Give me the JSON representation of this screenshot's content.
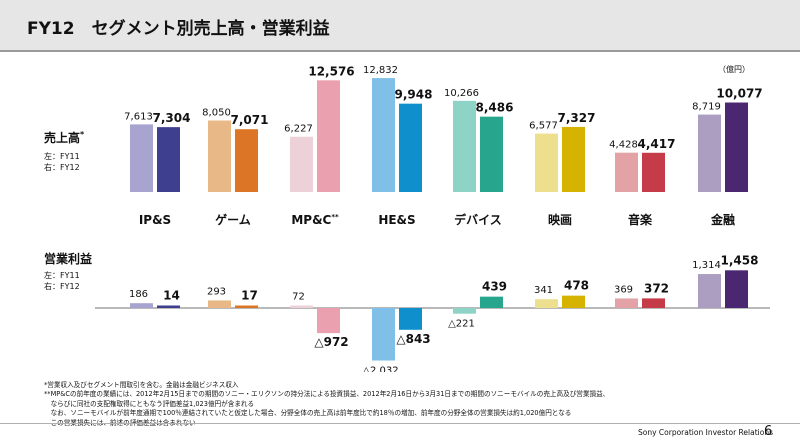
{
  "title": "FY12　セグメント別売上高・営業利益",
  "unit": "（億円）",
  "colors": {
    "fy11": [
      "#a7a4cf",
      "#e9b887",
      "#ecd2d8",
      "#80c0e8",
      "#8dd3c6",
      "#ecdf8e",
      "#e2a2a6",
      "#ab9ec1"
    ],
    "fy12": [
      "#3e3f8e",
      "#dd7526",
      "#eaa0ae",
      "#0f8fcc",
      "#27a68d",
      "#d6b300",
      "#c53c48",
      "#4b2671"
    ]
  },
  "panels": {
    "sales": {
      "label": "売上高",
      "marker": "*",
      "left": "左：FY11",
      "right": "右：FY12"
    },
    "op": {
      "label": "営業利益",
      "left": "左：FY11",
      "right": "右：FY12"
    }
  },
  "chart_data": {
    "type": "bar",
    "categories": [
      "IP&S",
      "ゲーム",
      "MP&C",
      "HE&S",
      "デバイス",
      "映画",
      "音楽",
      "金融"
    ],
    "category_markers": [
      "",
      "",
      "**",
      "",
      "",
      "",
      "",
      ""
    ],
    "panels": [
      {
        "name": "売上高",
        "series": [
          {
            "name": "FY11",
            "values": [
              7613,
              8050,
              6227,
              12832,
              10266,
              6577,
              4428,
              8719
            ],
            "labels": [
              "7,613",
              "8,050",
              "6,227",
              "12,832",
              "10,266",
              "6,577",
              "4,428",
              "8,719"
            ]
          },
          {
            "name": "FY12",
            "values": [
              7304,
              7071,
              12576,
              9948,
              8486,
              7327,
              4417,
              10077
            ],
            "labels": [
              "7,304",
              "7,071",
              "12,576",
              "9,948",
              "8,486",
              "7,327",
              "4,417",
              "10,077"
            ]
          }
        ]
      },
      {
        "name": "営業利益",
        "series": [
          {
            "name": "FY11",
            "values": [
              186,
              293,
              72,
              -2032,
              -221,
              341,
              369,
              1314
            ],
            "labels": [
              "186",
              "293",
              "72",
              "△2,032",
              "△221",
              "341",
              "369",
              "1,314"
            ]
          },
          {
            "name": "FY12",
            "values": [
              14,
              17,
              -972,
              -843,
              439,
              478,
              372,
              1458
            ],
            "labels": [
              "14",
              "17",
              "△972",
              "△843",
              "439",
              "478",
              "372",
              "1,458"
            ]
          }
        ]
      }
    ]
  },
  "footnotes": [
    "*営業収入及びセグメント間取引を含む。金融は金融ビジネス収入",
    "**MP&Cの前年度の業績には、2012年2月15日までの期間のソニー・エリクソンの持分法による投資損益、2012年2月16日から3月31日までの期間のソニーモバイルの売上高及び営業損益、",
    "　ならびに同社の支配権取得にともなう評価差益1,023億円が含まれる",
    "　なお、ソニーモバイルが前年度通期で100％連結されていたと仮定した場合、分野全体の売上高は前年度比で約18％の増加、前年度の分野全体の営業損失は約1,020億円となる",
    "　この営業損失には、前述の評価差益は含まれない"
  ],
  "footer": {
    "company": "Sony Corporation  Investor Relations",
    "page": "6"
  }
}
